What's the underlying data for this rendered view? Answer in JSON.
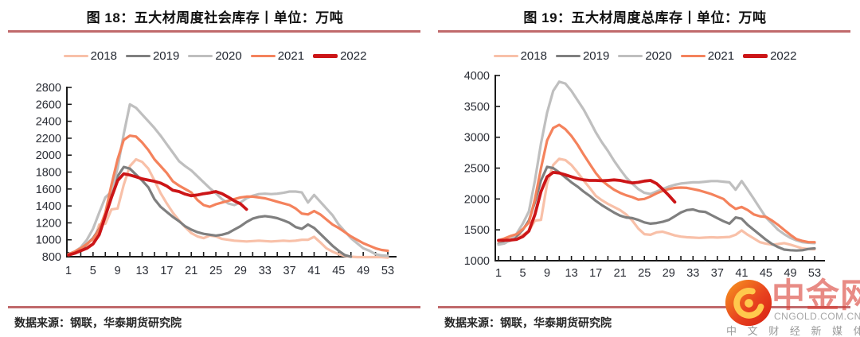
{
  "colors": {
    "rule": "#C0696B",
    "axis": "#1a1a1a",
    "tick_label": "#2a2d35",
    "title": "#111111",
    "s2018": "#F8C0A8",
    "s2019": "#7F7F7F",
    "s2020": "#BFBFBF",
    "s2021": "#F4825C",
    "s2022": "#CC1517"
  },
  "chart_data": [
    {
      "type": "line",
      "title": "图 18：五大材周度社会库存丨单位：万吨",
      "unit": "万吨",
      "source": "数据来源：钢联，华泰期货研究院",
      "x_range": [
        1,
        53
      ],
      "x_label_ticks": [
        1,
        5,
        9,
        13,
        17,
        21,
        25,
        29,
        33,
        37,
        41,
        45,
        49,
        53
      ],
      "ylim": [
        800,
        2800
      ],
      "ytick_step": 200,
      "grid": false,
      "legend_position": "top",
      "series": [
        {
          "name": "2018",
          "color": "#F8C0A8",
          "values": [
            820,
            840,
            880,
            930,
            950,
            1180,
            1190,
            1360,
            1370,
            1650,
            1870,
            1950,
            1920,
            1840,
            1700,
            1550,
            1430,
            1320,
            1230,
            1150,
            1080,
            1040,
            1020,
            1050,
            1040,
            1010,
            1000,
            990,
            985,
            980,
            985,
            990,
            985,
            980,
            985,
            990,
            985,
            990,
            1000,
            1000,
            1035,
            970,
            900,
            860,
            830,
            810,
            800,
            795,
            795,
            795,
            795,
            795,
            790
          ]
        },
        {
          "name": "2019",
          "color": "#7F7F7F",
          "values": [
            820,
            840,
            880,
            950,
            1020,
            1130,
            1290,
            1520,
            1750,
            1860,
            1840,
            1770,
            1700,
            1620,
            1480,
            1390,
            1330,
            1270,
            1220,
            1160,
            1120,
            1090,
            1070,
            1060,
            1050,
            1060,
            1080,
            1120,
            1160,
            1210,
            1250,
            1270,
            1280,
            1270,
            1255,
            1230,
            1200,
            1150,
            1130,
            1180,
            1140,
            1070,
            1000,
            930,
            870,
            820,
            800
          ]
        },
        {
          "name": "2020",
          "color": "#BFBFBF",
          "values": [
            830,
            860,
            910,
            1000,
            1130,
            1320,
            1500,
            1570,
            1850,
            2250,
            2600,
            2560,
            2480,
            2400,
            2320,
            2230,
            2130,
            2030,
            1930,
            1870,
            1820,
            1750,
            1680,
            1610,
            1550,
            1480,
            1430,
            1410,
            1440,
            1490,
            1520,
            1540,
            1545,
            1540,
            1545,
            1555,
            1570,
            1570,
            1560,
            1440,
            1530,
            1450,
            1370,
            1290,
            1180,
            1100,
            1020,
            960,
            900,
            870,
            830,
            815,
            810
          ]
        },
        {
          "name": "2021",
          "color": "#F4825C",
          "values": [
            830,
            860,
            900,
            950,
            1010,
            1120,
            1320,
            1650,
            1950,
            2180,
            2230,
            2220,
            2150,
            2060,
            1950,
            1870,
            1790,
            1690,
            1640,
            1600,
            1560,
            1470,
            1410,
            1390,
            1420,
            1440,
            1460,
            1480,
            1500,
            1510,
            1510,
            1500,
            1490,
            1470,
            1450,
            1430,
            1410,
            1370,
            1310,
            1300,
            1340,
            1300,
            1240,
            1180,
            1140,
            1090,
            1040,
            1000,
            960,
            930,
            900,
            880,
            870
          ]
        },
        {
          "name": "2022",
          "color": "#CC1517",
          "values": [
            820,
            840,
            870,
            900,
            950,
            1060,
            1280,
            1500,
            1700,
            1780,
            1765,
            1745,
            1720,
            1705,
            1690,
            1670,
            1635,
            1585,
            1570,
            1540,
            1520,
            1530,
            1545,
            1555,
            1570,
            1545,
            1505,
            1460,
            1425,
            1360
          ]
        }
      ]
    },
    {
      "type": "line",
      "title": "图 19：五大材周度总库存丨单位：万吨",
      "unit": "万吨",
      "source": "数据来源：钢联，华泰期货研究院",
      "x_range": [
        1,
        53
      ],
      "x_label_ticks": [
        1,
        5,
        9,
        13,
        17,
        21,
        25,
        29,
        33,
        37,
        41,
        45,
        49,
        53
      ],
      "ylim": [
        1000,
        4000
      ],
      "ytick_step": 500,
      "grid": false,
      "legend_position": "top",
      "series": [
        {
          "name": "2018",
          "color": "#F8C0A8",
          "values": [
            1300,
            1330,
            1370,
            1390,
            1420,
            1480,
            1650,
            1660,
            2250,
            2550,
            2650,
            2630,
            2550,
            2430,
            2300,
            2180,
            2050,
            1980,
            1920,
            1870,
            1820,
            1750,
            1650,
            1520,
            1430,
            1420,
            1460,
            1470,
            1440,
            1410,
            1390,
            1380,
            1375,
            1370,
            1375,
            1380,
            1375,
            1380,
            1385,
            1420,
            1490,
            1420,
            1360,
            1300,
            1275,
            1260,
            1270,
            1285,
            1260,
            1230,
            1200,
            1190,
            1185
          ]
        },
        {
          "name": "2019",
          "color": "#7F7F7F",
          "values": [
            1270,
            1290,
            1330,
            1400,
            1500,
            1650,
            1950,
            2300,
            2520,
            2500,
            2430,
            2350,
            2270,
            2200,
            2120,
            2050,
            1970,
            1900,
            1840,
            1780,
            1730,
            1700,
            1690,
            1660,
            1620,
            1600,
            1610,
            1630,
            1660,
            1720,
            1780,
            1820,
            1830,
            1800,
            1790,
            1740,
            1690,
            1640,
            1600,
            1700,
            1680,
            1580,
            1500,
            1420,
            1340,
            1270,
            1220,
            1180,
            1170,
            1165,
            1170,
            1190,
            1200
          ]
        },
        {
          "name": "2020",
          "color": "#BFBFBF",
          "values": [
            1260,
            1280,
            1340,
            1440,
            1600,
            1800,
            2300,
            2900,
            3400,
            3750,
            3900,
            3870,
            3750,
            3600,
            3450,
            3270,
            3080,
            2920,
            2780,
            2620,
            2480,
            2350,
            2250,
            2160,
            2100,
            2080,
            2120,
            2160,
            2200,
            2230,
            2250,
            2260,
            2270,
            2270,
            2280,
            2290,
            2290,
            2280,
            2270,
            2150,
            2290,
            2150,
            2000,
            1850,
            1700,
            1600,
            1500,
            1430,
            1370,
            1330,
            1300,
            1290,
            1285
          ]
        },
        {
          "name": "2021",
          "color": "#F4825C",
          "values": [
            1330,
            1360,
            1400,
            1430,
            1510,
            1620,
            2000,
            2500,
            2950,
            3150,
            3200,
            3130,
            3020,
            2880,
            2720,
            2570,
            2420,
            2300,
            2220,
            2150,
            2100,
            2060,
            2030,
            1990,
            2000,
            2040,
            2090,
            2130,
            2160,
            2180,
            2185,
            2180,
            2160,
            2140,
            2110,
            2080,
            2040,
            2000,
            1910,
            1840,
            1870,
            1820,
            1750,
            1720,
            1710,
            1650,
            1580,
            1500,
            1420,
            1350,
            1320,
            1300,
            1300
          ]
        },
        {
          "name": "2022",
          "color": "#CC1517",
          "values": [
            1330,
            1330,
            1335,
            1345,
            1390,
            1480,
            1750,
            2120,
            2360,
            2430,
            2420,
            2390,
            2360,
            2330,
            2310,
            2300,
            2300,
            2295,
            2300,
            2310,
            2300,
            2280,
            2260,
            2270,
            2290,
            2300,
            2250,
            2160,
            2060,
            1950
          ]
        }
      ]
    }
  ],
  "watermark": {
    "brand": "中金网",
    "domain": "CNGOLD.COM.CN",
    "tagline": "中 文 财 经 新 媒 体",
    "icon": "swirl-comma-icon",
    "brand_color": "#D93E34"
  }
}
